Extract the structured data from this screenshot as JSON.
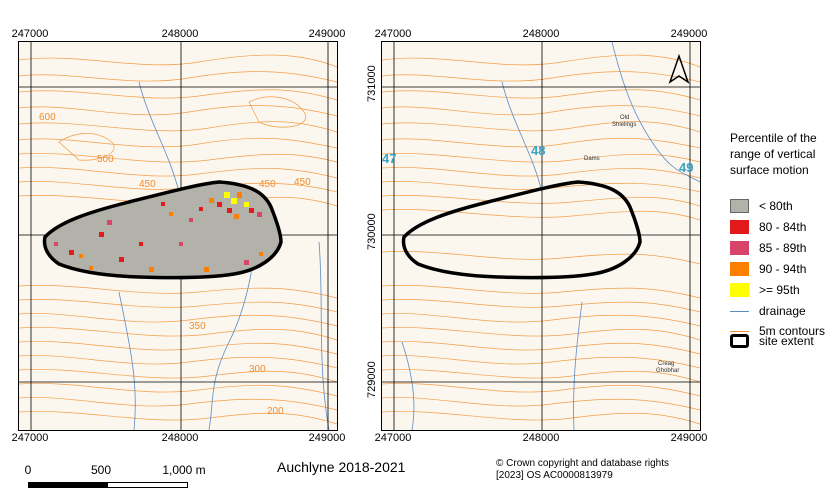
{
  "left_map": {
    "x_ticks_top": [
      "247000",
      "248000",
      "249000"
    ],
    "x_ticks_bottom": [
      "247000",
      "248000",
      "249000"
    ],
    "contour_labels": [
      "600",
      "500",
      "450",
      "450",
      "450",
      "350",
      "300",
      "200"
    ]
  },
  "right_map": {
    "x_ticks_top": [
      "247000",
      "248000",
      "249000"
    ],
    "x_ticks_bottom": [
      "247000",
      "248000",
      "249000"
    ],
    "y_ticks": [
      "731000",
      "730000",
      "729000"
    ],
    "grid_labels": [
      "47",
      "48",
      "49"
    ],
    "place_labels": {
      "old_shielings_1": "Old",
      "old_shielings_2": "Shielings",
      "dams": "Dams",
      "creag_1": "Creag",
      "creag_2": "Ghobhar"
    },
    "north_arrow": "north-arrow-icon"
  },
  "legend": {
    "title": "Percentile of the range of vertical surface motion",
    "items": [
      {
        "label": "< 80th",
        "color": "#b2b2aa"
      },
      {
        "label": "80 - 84th",
        "color": "#e31a1c"
      },
      {
        "label": "85 - 89th",
        "color": "#d9446a"
      },
      {
        "label": "90 - 94th",
        "color": "#fd7f00"
      },
      {
        "label": ">= 95th",
        "color": "#ffff00"
      }
    ],
    "line_items": [
      {
        "label": "drainage",
        "color": "#5b8cc8"
      },
      {
        "label": "5m contours",
        "color": "#f28e2c"
      }
    ],
    "extent": {
      "label": "site extent"
    }
  },
  "scale_bar": {
    "labels": [
      "0",
      "500",
      "1,000 m"
    ]
  },
  "footer": {
    "title": "Auchlyne 2018-2021",
    "copyright_line1": "© Crown copyright and database rights",
    "copyright_line2": "[2023] OS AC0000813979"
  }
}
